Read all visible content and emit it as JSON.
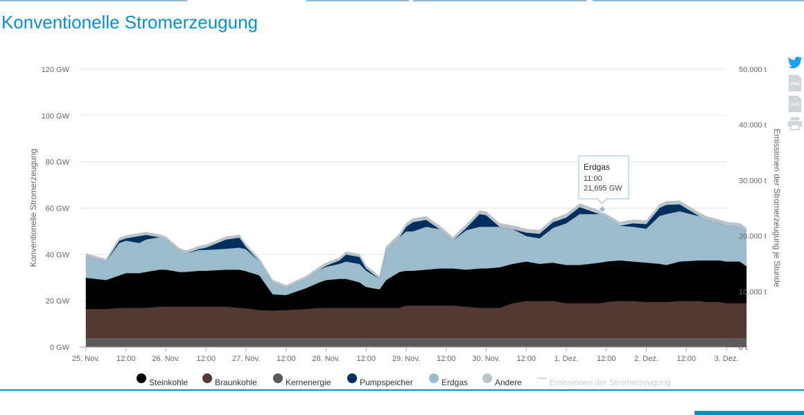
{
  "page": {
    "title": "Konventionelle Stromerzeugung"
  },
  "colors": {
    "accent": "#0a8fc2",
    "Steinkohle": "#000000",
    "Braunkohle": "#523934",
    "Kernenergie": "#5a5a5a",
    "Pumpspeicher": "#002f5f",
    "Erdgas": "#9dbccb",
    "Andere": "#b8c3ca",
    "Emissionen": "#cccccc"
  },
  "tools": [
    {
      "name": "twitter-icon",
      "label": ""
    },
    {
      "name": "png-export-icon",
      "label": "PNG"
    },
    {
      "name": "svg-export-icon",
      "label": "SVG"
    },
    {
      "name": "print-icon",
      "label": ""
    }
  ],
  "tooltip": {
    "series": "Erdgas",
    "time": "11:00",
    "value": "21,695 GW"
  },
  "chart_data": {
    "type": "area",
    "stacked": true,
    "title": "",
    "ylabel": "Konventionelle Stromerzeugung",
    "y2label": "Emissionen der Stromerzeugung je Stunde",
    "ylim": [
      0,
      120
    ],
    "y2lim": [
      0,
      50000
    ],
    "yticks": [
      "0 GW",
      "20 GW",
      "40 GW",
      "60 GW",
      "80 GW",
      "100 GW",
      "120 GW"
    ],
    "y2ticks": [
      "0 t",
      "10.000 t",
      "20.000 t",
      "30.000 t",
      "40.000 t",
      "50.000 t"
    ],
    "xlim_hours": [
      0,
      192
    ],
    "xticks": [
      "25. Nov.",
      "12:00",
      "26. Nov.",
      "12:00",
      "27. Nov.",
      "12:00",
      "28. Nov.",
      "12:00",
      "29. Nov.",
      "12:00",
      "30. Nov.",
      "12:00",
      "1. Dez.",
      "12:00",
      "2. Dez.",
      "12:00",
      "3. Dez."
    ],
    "grid": true,
    "legend_position": "bottom",
    "x_hours": [
      0,
      6,
      10,
      12,
      16,
      18,
      22,
      24,
      28,
      30,
      34,
      36,
      42,
      46,
      48,
      52,
      56,
      60,
      66,
      70,
      72,
      76,
      78,
      82,
      84,
      88,
      90,
      94,
      96,
      98,
      102,
      106,
      110,
      114,
      118,
      120,
      124,
      128,
      132,
      136,
      140,
      144,
      148,
      154,
      156,
      160,
      164,
      168,
      172,
      174,
      178,
      184,
      186,
      190,
      192,
      196,
      198
    ],
    "series": [
      {
        "name": "Kernenergie",
        "values": [
          4,
          4,
          4,
          4,
          4,
          4,
          4,
          4,
          4,
          4,
          4,
          4,
          4,
          4,
          4,
          4,
          4,
          4,
          4,
          4,
          4,
          4,
          4,
          4,
          4,
          4,
          4,
          4,
          4,
          4,
          4,
          4,
          4,
          4,
          4,
          4,
          4,
          4,
          4,
          4,
          4,
          4,
          4,
          4,
          4,
          4,
          4,
          4,
          4,
          4,
          4,
          4,
          4,
          4,
          4,
          4,
          4
        ]
      },
      {
        "name": "Braunkohle",
        "values": [
          12.5,
          12.5,
          13,
          13,
          13,
          13,
          13.5,
          13.5,
          13.5,
          13.5,
          13.5,
          13.5,
          13.5,
          13,
          12.8,
          12,
          11.8,
          12,
          12.5,
          13,
          13,
          13,
          13,
          13,
          13,
          13,
          13,
          13,
          14,
          14,
          14,
          14,
          14,
          13.5,
          13,
          13,
          13,
          15,
          16,
          16,
          16,
          15,
          15,
          15,
          15.5,
          16,
          16,
          15.5,
          15.5,
          15.5,
          16,
          16,
          15.5,
          15.5,
          15,
          15,
          15
        ]
      },
      {
        "name": "Steinkohle",
        "values": [
          13.5,
          12.5,
          14,
          15,
          15,
          15.5,
          16,
          16,
          15,
          15,
          15.5,
          15.5,
          16,
          16.5,
          16,
          15,
          7,
          6.5,
          9,
          11,
          12,
          12.5,
          12.5,
          11,
          9,
          8,
          12,
          15.5,
          15,
          15,
          15.5,
          16,
          16,
          16,
          17,
          17,
          17.5,
          17,
          17,
          16,
          16.5,
          16.5,
          16.5,
          17.5,
          17.5,
          17.5,
          17,
          17,
          16.5,
          16,
          17,
          17.5,
          18,
          18,
          18,
          18,
          16
        ]
      },
      {
        "name": "Erdgas",
        "values": [
          9.5,
          8,
          14,
          14,
          13,
          14,
          14,
          13,
          9,
          8,
          9,
          9,
          9,
          9.5,
          9.5,
          6,
          5,
          3,
          4,
          5.5,
          5.7,
          6.5,
          7.5,
          8,
          7,
          4.5,
          13,
          15,
          17,
          17,
          18.5,
          17,
          12,
          17,
          18,
          18,
          17.5,
          15,
          11,
          11,
          15,
          18,
          22,
          21,
          19,
          15,
          15,
          14.7,
          20.7,
          22,
          21.7,
          19,
          17.5,
          16,
          15.5,
          15,
          15
        ]
      },
      {
        "name": "Pumpspeicher",
        "values": [
          0,
          0,
          1,
          1,
          3,
          2,
          0,
          0,
          0,
          0,
          0.5,
          1,
          4,
          4.3,
          1,
          0,
          0,
          0,
          0,
          0,
          0.5,
          1.5,
          3,
          3,
          1,
          0,
          0,
          0,
          2,
          4,
          3,
          0,
          0,
          1,
          5.5,
          5,
          0,
          0,
          1.5,
          2,
          2.5,
          2.5,
          3,
          0,
          0,
          0,
          1.5,
          2,
          3.5,
          4,
          3,
          0,
          0,
          0,
          0,
          0,
          0
        ]
      },
      {
        "name": "Andere",
        "values": [
          1,
          1,
          1.2,
          1.2,
          1.2,
          1.2,
          1.2,
          1.2,
          1.2,
          1.2,
          1.2,
          1.2,
          1.2,
          1.2,
          1.2,
          1.2,
          1.2,
          1.2,
          1.2,
          1.2,
          1.2,
          1.2,
          1.2,
          1.2,
          1.2,
          1.2,
          1.5,
          1.5,
          1.5,
          1.5,
          1.5,
          1.5,
          1.5,
          1.5,
          1.5,
          1.5,
          1.5,
          1.5,
          1.5,
          1.5,
          1.5,
          1.5,
          1.5,
          1.5,
          1.5,
          1.5,
          1.5,
          1.5,
          1.5,
          1.5,
          1.5,
          1.5,
          1.5,
          1.5,
          1.5,
          1.5,
          1.5
        ]
      }
    ],
    "legend": [
      "Steinkohle",
      "Braunkohle",
      "Kernenergie",
      "Pumpspeicher",
      "Erdgas",
      "Andere",
      "Emissionen der Stromerzeugung"
    ],
    "hidden_series": [
      "Emissionen der Stromerzeugung"
    ]
  }
}
